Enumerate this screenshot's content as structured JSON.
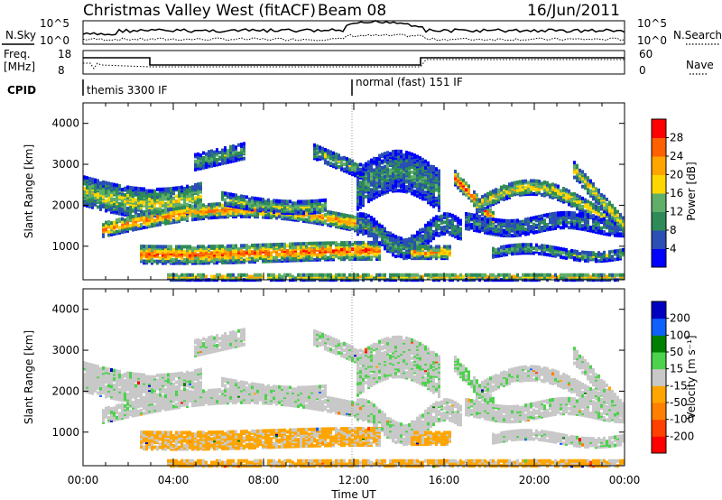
{
  "header": {
    "station": "Christmas Valley West (fitACF)",
    "beam": "Beam 08",
    "date": "16/Jun/2011"
  },
  "top_panels": {
    "nsky_label": "N.Sky",
    "nsky_ticks": [
      "10^5",
      "10^0"
    ],
    "nsearch_label": "N.Search",
    "nsearch_ticks": [
      "10^5",
      "10^0"
    ],
    "freq_label_1": "Freq.",
    "freq_label_2": "[MHz]",
    "freq_ticks": [
      "18",
      "8"
    ],
    "nave_label": "Nave",
    "nave_ticks": [
      "60",
      "0"
    ],
    "cpid_label": "CPID",
    "cpid_segments": [
      "themis 3300 IF",
      "normal (fast) 151 IF"
    ]
  },
  "colors": {
    "power": [
      "#0000ff",
      "#2a4fb5",
      "#2e8b57",
      "#5fae6a",
      "#ffd700",
      "#ffa500",
      "#ff6000",
      "#ff0000"
    ],
    "velocity": [
      "#0000c0",
      "#1060ff",
      "#008000",
      "#4cd24c",
      "#c8c8c8",
      "#ffa500",
      "#ff8000",
      "#ff4000",
      "#ff0000"
    ]
  },
  "chart_data": [
    {
      "type": "heatmap",
      "title": "",
      "xlabel": "Time UT",
      "ylabel": "Slant Range [km]",
      "x_ticks": [
        "00:00",
        "04:00",
        "08:00",
        "12:00",
        "16:00",
        "20:00",
        "00:00"
      ],
      "y_ticks": [
        "1000",
        "2000",
        "3000",
        "4000"
      ],
      "ylim": [
        180,
        4500
      ],
      "colorbar_label": "Power [dB]",
      "colorbar_ticks": [
        "4",
        "8",
        "12",
        "16",
        "20",
        "24",
        "28"
      ],
      "colorbar_range": [
        0,
        32
      ]
    },
    {
      "type": "heatmap",
      "title": "",
      "xlabel": "Time UT",
      "ylabel": "Slant Range [km]",
      "x_ticks": [
        "00:00",
        "04:00",
        "08:00",
        "12:00",
        "16:00",
        "20:00",
        "00:00"
      ],
      "y_ticks": [
        "1000",
        "2000",
        "3000",
        "4000"
      ],
      "ylim": [
        180,
        4500
      ],
      "colorbar_label": "Velocity [m s⁻¹]",
      "colorbar_ticks": [
        "200",
        "100",
        "50",
        "15",
        "-15",
        "-50",
        "-100",
        "-200"
      ]
    }
  ]
}
